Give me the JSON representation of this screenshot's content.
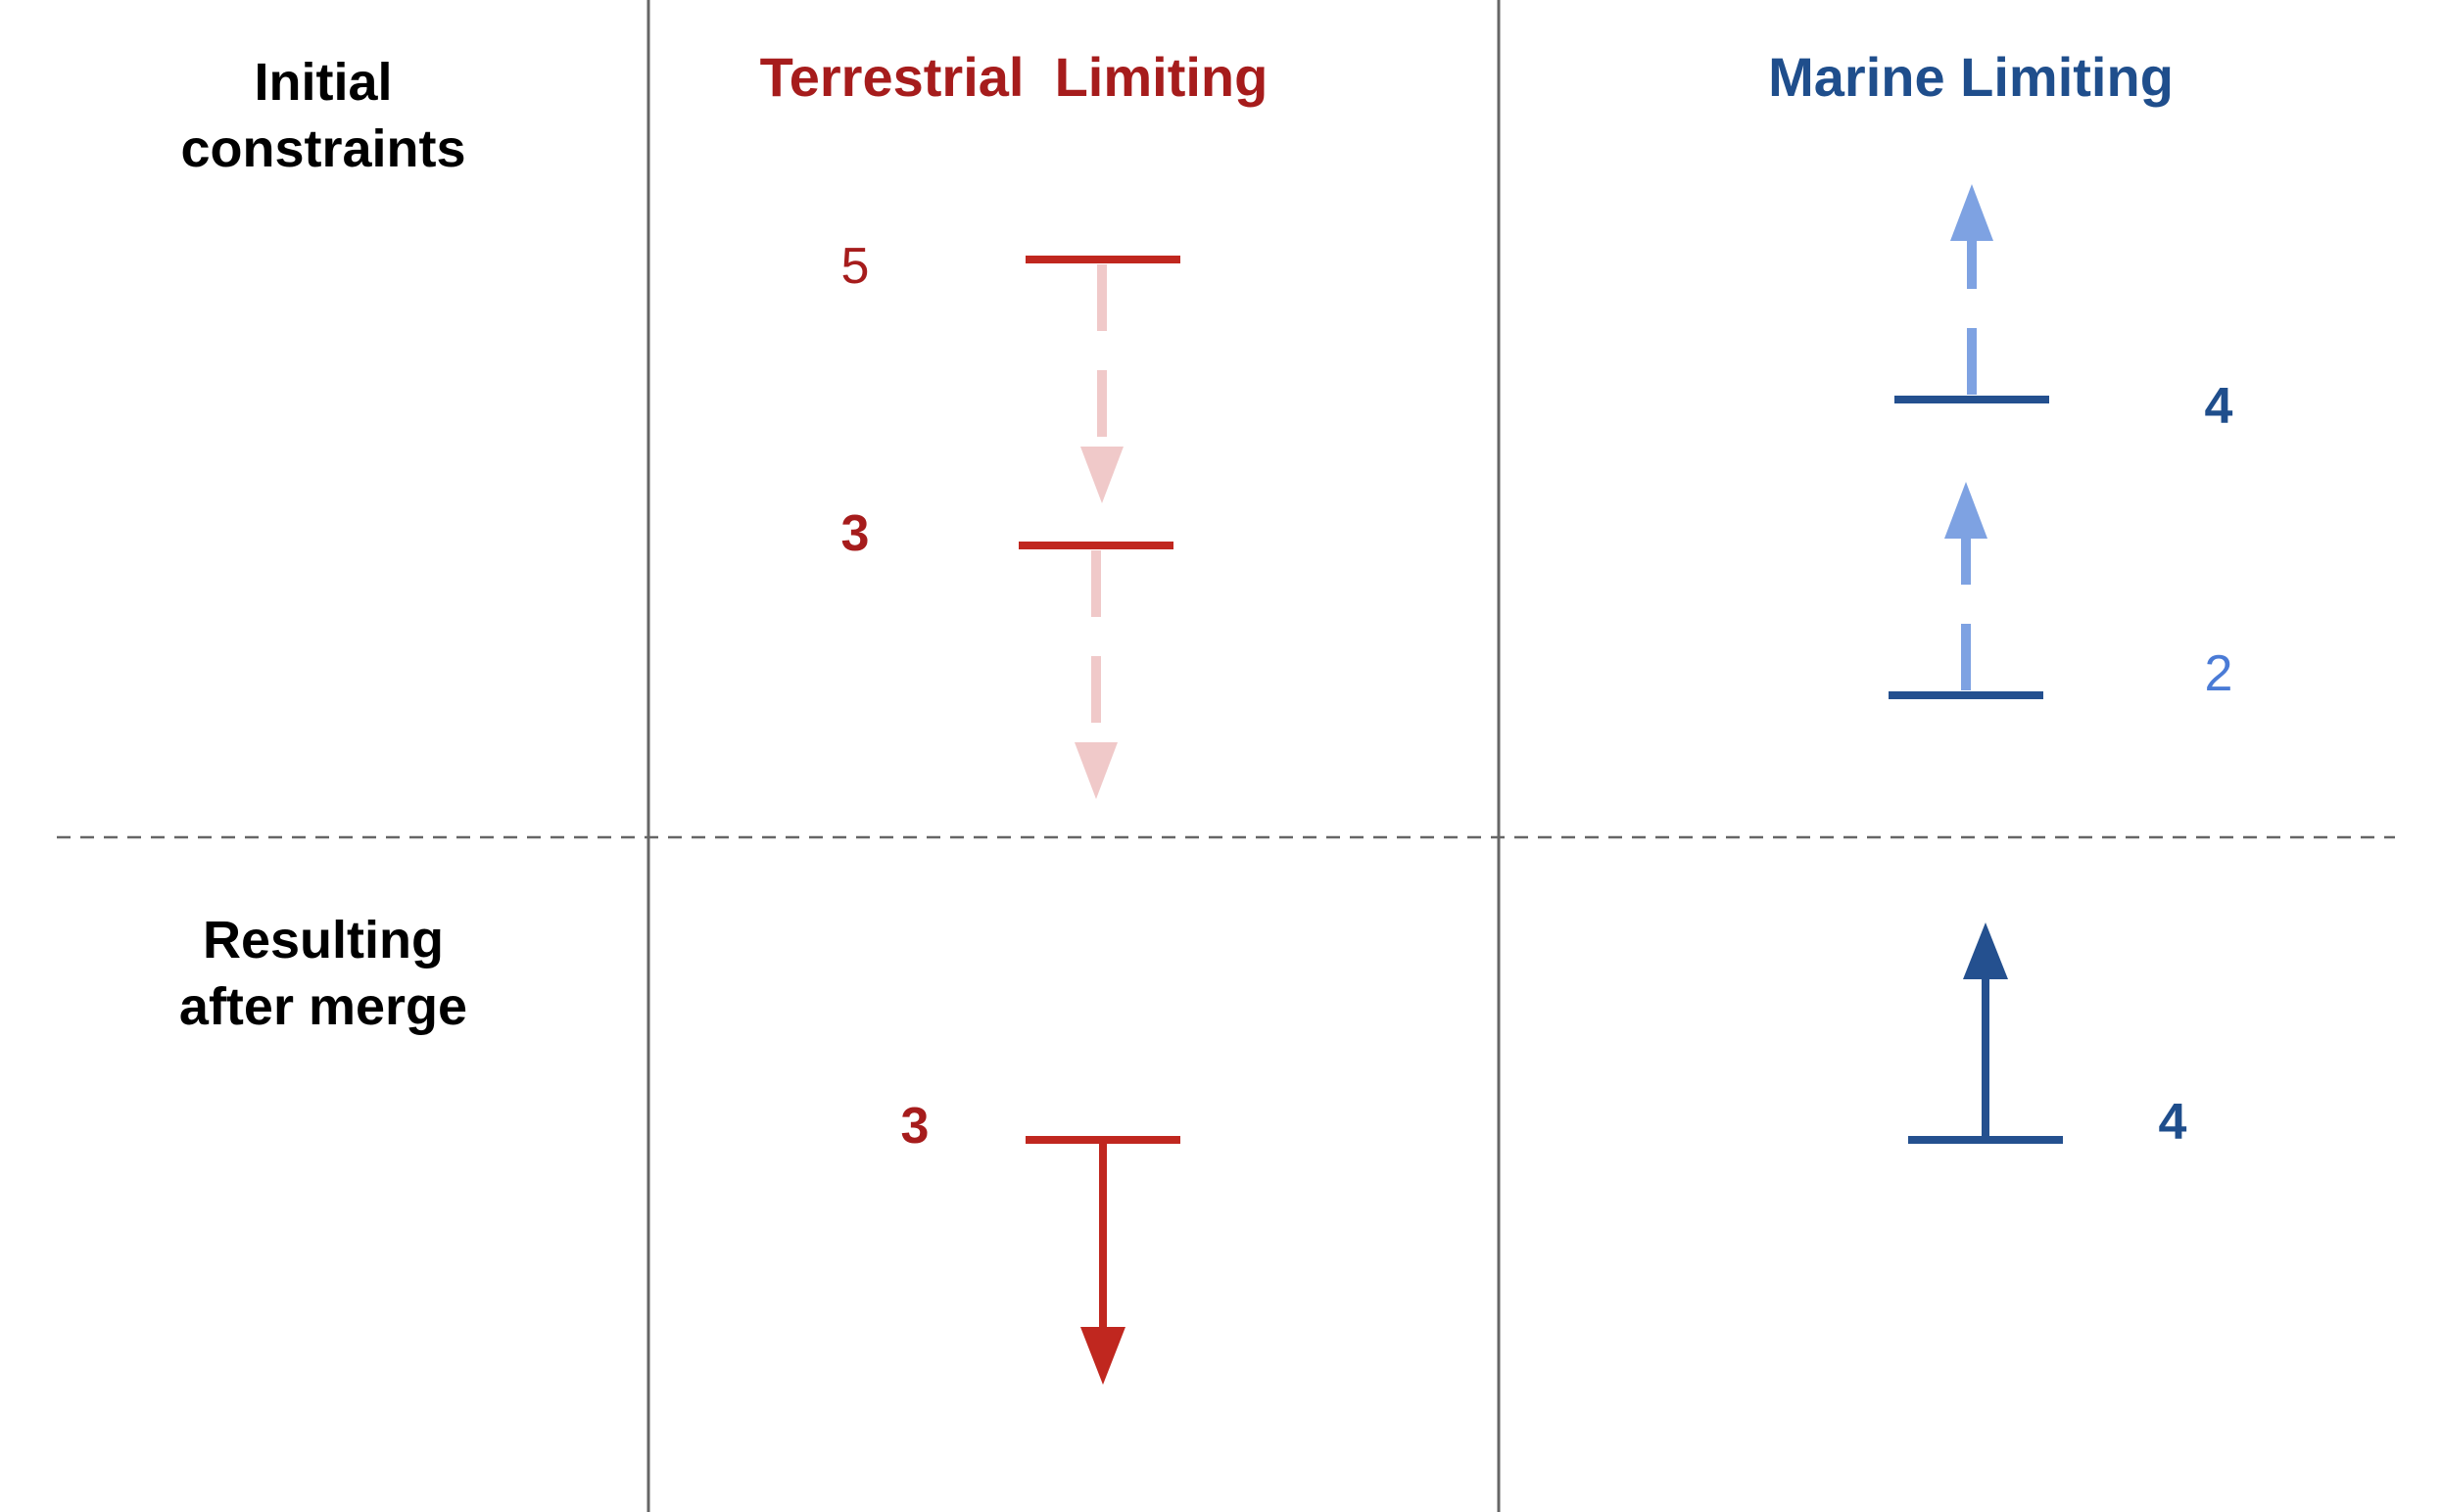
{
  "row_labels": {
    "initial": [
      "Initial",
      "constraints"
    ],
    "result": [
      "Resulting",
      "after merge"
    ]
  },
  "columns": {
    "terrestrial": {
      "title": "Terrestrial  Limiting"
    },
    "marine": {
      "title": "Marine Limiting"
    }
  },
  "constraints": {
    "terrestrial_initial": [
      {
        "value": "5",
        "direction": "down",
        "style": "dashed"
      },
      {
        "value": "3",
        "direction": "down",
        "style": "dashed"
      }
    ],
    "marine_initial": [
      {
        "value": "4",
        "direction": "up",
        "style": "dashed"
      },
      {
        "value": "2",
        "direction": "up",
        "style": "dashed"
      }
    ],
    "terrestrial_result": {
      "value": "3",
      "direction": "down",
      "style": "solid"
    },
    "marine_result": {
      "value": "4",
      "direction": "up",
      "style": "solid"
    }
  },
  "colors": {
    "terrestrial_dark": "#A61C1C",
    "terrestrial_bar": "#C0271F",
    "terrestrial_faint": "#F0C9C9",
    "marine_dark": "#1F4E8C",
    "marine_bar": "#24508F",
    "marine_light": "#7EA2E2",
    "grid": "#666666"
  }
}
